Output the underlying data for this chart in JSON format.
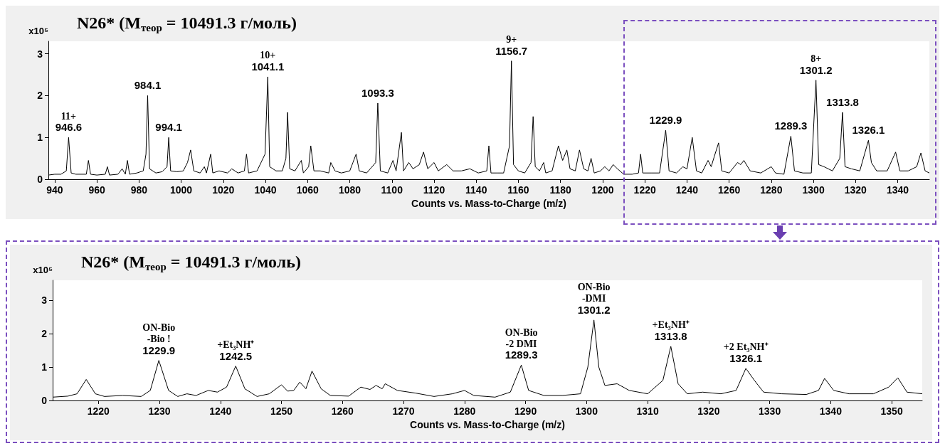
{
  "chart_data": [
    {
      "type": "line",
      "title": "N26* (M$_{теор}$ = 10491.3 г/моль)",
      "xlabel": "Counts vs. Mass-to-Charge (m/z)",
      "ylabel": "x10⁵",
      "color": "#000000",
      "xlim": [
        937,
        1355
      ],
      "ylim": [
        0,
        3.3
      ],
      "xticks": [
        940,
        960,
        980,
        1000,
        1020,
        1040,
        1060,
        1080,
        1100,
        1120,
        1140,
        1160,
        1180,
        1200,
        1220,
        1240,
        1260,
        1280,
        1300,
        1320,
        1340
      ],
      "yticks": [
        0,
        1,
        2,
        3
      ],
      "x": [
        937,
        940,
        943,
        945.5,
        946.6,
        947.8,
        950,
        955,
        956,
        957,
        960,
        964,
        965,
        966,
        970,
        972,
        973.5,
        974.5,
        975.5,
        979,
        982,
        983.3,
        984.1,
        985,
        988,
        991,
        993.3,
        994.1,
        995,
        998,
        1001,
        1003,
        1004.5,
        1006,
        1009,
        1011,
        1012,
        1014,
        1015,
        1018,
        1022,
        1024,
        1027,
        1030,
        1031,
        1032,
        1036,
        1039.8,
        1041.1,
        1042,
        1045,
        1048,
        1049.7,
        1050.5,
        1051.5,
        1054,
        1057,
        1058,
        1060.5,
        1061.5,
        1063,
        1066,
        1070,
        1071,
        1073,
        1076,
        1080,
        1081.5,
        1083,
        1084.5,
        1088,
        1092.3,
        1093.3,
        1094.5,
        1098,
        1100.5,
        1102,
        1104.5,
        1105.5,
        1108,
        1110,
        1113,
        1115,
        1117,
        1120,
        1122,
        1126,
        1129,
        1133,
        1137,
        1141,
        1145,
        1146,
        1147,
        1150,
        1153,
        1155.8,
        1156.7,
        1157.7,
        1160,
        1163,
        1166,
        1167,
        1168,
        1170,
        1172,
        1173,
        1176,
        1179,
        1181,
        1183,
        1184.5,
        1187,
        1189,
        1191,
        1193,
        1194.5,
        1196,
        1199,
        1201,
        1203,
        1205,
        1207,
        1210,
        1214,
        1217,
        1218,
        1219,
        1223,
        1227,
        1229.9,
        1231.5,
        1235,
        1238,
        1240,
        1242.5,
        1244.5,
        1247,
        1250,
        1251.5,
        1253,
        1255,
        1256.5,
        1260,
        1264,
        1265.5,
        1267,
        1270,
        1275,
        1280,
        1282,
        1286,
        1289.3,
        1291,
        1295,
        1299,
        1301.2,
        1302.5,
        1305,
        1309,
        1312.5,
        1313.8,
        1315,
        1318,
        1322,
        1326.1,
        1327.5,
        1330,
        1335,
        1339,
        1341,
        1345,
        1349,
        1351,
        1353,
        1355
      ],
      "values": [
        0.1,
        0.12,
        0.12,
        0.2,
        1.0,
        0.15,
        0.12,
        0.12,
        0.45,
        0.12,
        0.1,
        0.12,
        0.3,
        0.1,
        0.12,
        0.25,
        0.12,
        0.45,
        0.12,
        0.15,
        0.2,
        0.6,
        2.0,
        0.25,
        0.15,
        0.18,
        0.3,
        1.0,
        0.2,
        0.18,
        0.2,
        0.4,
        0.7,
        0.2,
        0.15,
        0.3,
        0.15,
        0.6,
        0.15,
        0.2,
        0.15,
        0.25,
        0.15,
        0.2,
        0.6,
        0.15,
        0.2,
        0.6,
        2.45,
        0.3,
        0.2,
        0.2,
        0.5,
        1.6,
        0.25,
        0.2,
        0.45,
        0.15,
        0.3,
        0.8,
        0.2,
        0.2,
        0.15,
        0.4,
        0.2,
        0.15,
        0.2,
        0.4,
        0.6,
        0.2,
        0.15,
        0.4,
        1.82,
        0.2,
        0.15,
        0.45,
        0.2,
        1.12,
        0.2,
        0.4,
        0.25,
        0.35,
        0.65,
        0.25,
        0.4,
        0.2,
        0.35,
        0.2,
        0.2,
        0.25,
        0.15,
        0.2,
        0.8,
        0.15,
        0.15,
        0.15,
        0.8,
        2.83,
        0.35,
        0.2,
        0.15,
        0.4,
        1.5,
        0.3,
        0.2,
        0.4,
        0.15,
        0.2,
        0.8,
        0.45,
        0.7,
        0.25,
        0.2,
        0.7,
        0.25,
        0.2,
        0.5,
        0.15,
        0.2,
        0.3,
        0.2,
        0.35,
        0.25,
        0.12,
        0.12,
        0.15,
        0.6,
        0.15,
        0.15,
        0.15,
        1.17,
        0.2,
        0.15,
        0.3,
        0.25,
        1.0,
        0.2,
        0.15,
        0.45,
        0.3,
        0.55,
        0.87,
        0.2,
        0.15,
        0.4,
        0.35,
        0.45,
        0.2,
        0.15,
        0.3,
        0.15,
        0.12,
        1.03,
        0.2,
        0.15,
        0.15,
        2.37,
        0.35,
        0.3,
        0.2,
        0.5,
        1.6,
        0.3,
        0.25,
        0.2,
        0.93,
        0.4,
        0.2,
        0.2,
        0.65,
        0.2,
        0.2,
        0.3,
        0.63,
        0.2,
        0.15
      ],
      "annotations": [
        {
          "text": "11+",
          "x": 946.6,
          "y": 1.0
        },
        {
          "text": "946.6",
          "x": 946.6,
          "y": 1.0
        },
        {
          "text": "984.1",
          "x": 984.1,
          "y": 2.0
        },
        {
          "text": "994.1",
          "x": 994.1,
          "y": 1.0
        },
        {
          "text": "10+",
          "x": 1041.1,
          "y": 2.45
        },
        {
          "text": "1041.1",
          "x": 1041.1,
          "y": 2.45
        },
        {
          "text": "1093.3",
          "x": 1093.3,
          "y": 1.82
        },
        {
          "text": "9+",
          "x": 1156.7,
          "y": 2.83
        },
        {
          "text": "1156.7",
          "x": 1156.7,
          "y": 2.83
        },
        {
          "text": "1229.9",
          "x": 1229.9,
          "y": 1.17
        },
        {
          "text": "1289.3",
          "x": 1289.3,
          "y": 1.03
        },
        {
          "text": "8+",
          "x": 1301.2,
          "y": 2.37
        },
        {
          "text": "1301.2",
          "x": 1301.2,
          "y": 2.37
        },
        {
          "text": "1313.8",
          "x": 1313.8,
          "y": 1.6
        },
        {
          "text": "1326.1",
          "x": 1326.1,
          "y": 0.93
        }
      ]
    },
    {
      "type": "line",
      "title": "N26* (M$_{теор}$ = 10491.3 г/моль)",
      "xlabel": "Counts vs. Mass-to-Charge (m/z)",
      "ylabel": "x10⁵",
      "color": "#000000",
      "xlim": [
        1212.5,
        1355
      ],
      "ylim": [
        0,
        3.6
      ],
      "xticks": [
        1220,
        1230,
        1240,
        1250,
        1260,
        1270,
        1280,
        1290,
        1300,
        1310,
        1320,
        1330,
        1340,
        1350
      ],
      "yticks": [
        0,
        1,
        2,
        3
      ],
      "x": [
        1212.5,
        1215,
        1216.5,
        1218,
        1219.5,
        1221,
        1224,
        1227,
        1228.5,
        1229.9,
        1231.5,
        1233,
        1234.5,
        1236,
        1238,
        1239.5,
        1241,
        1242.5,
        1244,
        1246,
        1248,
        1250,
        1251,
        1252,
        1253,
        1254,
        1255,
        1256.5,
        1258,
        1261,
        1263,
        1264.5,
        1265.5,
        1266.5,
        1267,
        1269,
        1272,
        1275,
        1278,
        1280,
        1281.5,
        1285,
        1287.5,
        1289.3,
        1290.5,
        1293,
        1296,
        1299,
        1300.2,
        1301.2,
        1302,
        1303,
        1305,
        1307,
        1310,
        1312.5,
        1313.8,
        1315,
        1316.5,
        1319,
        1322,
        1324.5,
        1326.1,
        1327.5,
        1329,
        1332,
        1336,
        1338,
        1339,
        1340.5,
        1343,
        1347,
        1349.5,
        1351,
        1352.5,
        1355
      ],
      "values": [
        0.1,
        0.13,
        0.2,
        0.63,
        0.2,
        0.12,
        0.15,
        0.12,
        0.3,
        1.2,
        0.3,
        0.12,
        0.2,
        0.15,
        0.3,
        0.25,
        0.4,
        1.03,
        0.35,
        0.12,
        0.2,
        0.47,
        0.28,
        0.3,
        0.55,
        0.35,
        0.88,
        0.35,
        0.15,
        0.13,
        0.4,
        0.33,
        0.45,
        0.35,
        0.5,
        0.3,
        0.22,
        0.12,
        0.2,
        0.3,
        0.15,
        0.1,
        0.25,
        1.06,
        0.3,
        0.15,
        0.15,
        0.2,
        1.0,
        2.41,
        1.0,
        0.45,
        0.5,
        0.3,
        0.2,
        0.6,
        1.62,
        0.5,
        0.2,
        0.25,
        0.2,
        0.3,
        0.96,
        0.6,
        0.25,
        0.2,
        0.18,
        0.3,
        0.66,
        0.3,
        0.2,
        0.2,
        0.4,
        0.68,
        0.25,
        0.2
      ],
      "annotations": [
        {
          "text": "ON-Bio",
          "x": 1229.9,
          "y": 1.2
        },
        {
          "text": "-Bio !",
          "x": 1229.9,
          "y": 1.2
        },
        {
          "text": "1229.9",
          "x": 1229.9,
          "y": 1.2
        },
        {
          "text": "+Et₃NH⁺",
          "x": 1242.5,
          "y": 1.03
        },
        {
          "text": "1242.5",
          "x": 1242.5,
          "y": 1.03
        },
        {
          "text": "ON-Bio",
          "x": 1289.3,
          "y": 1.06
        },
        {
          "text": "-2 DMI",
          "x": 1289.3,
          "y": 1.06
        },
        {
          "text": "1289.3",
          "x": 1289.3,
          "y": 1.06
        },
        {
          "text": "ON-Bio",
          "x": 1301.2,
          "y": 2.41
        },
        {
          "text": "-DMI",
          "x": 1301.2,
          "y": 2.41
        },
        {
          "text": "1301.2",
          "x": 1301.2,
          "y": 2.41
        },
        {
          "text": "+Et₃NH⁺",
          "x": 1313.8,
          "y": 1.62
        },
        {
          "text": "1313.8",
          "x": 1313.8,
          "y": 1.62
        },
        {
          "text": "+2 Et₃NH⁺",
          "x": 1326.1,
          "y": 0.96
        },
        {
          "text": "1326.1",
          "x": 1326.1,
          "y": 0.96
        }
      ]
    }
  ]
}
